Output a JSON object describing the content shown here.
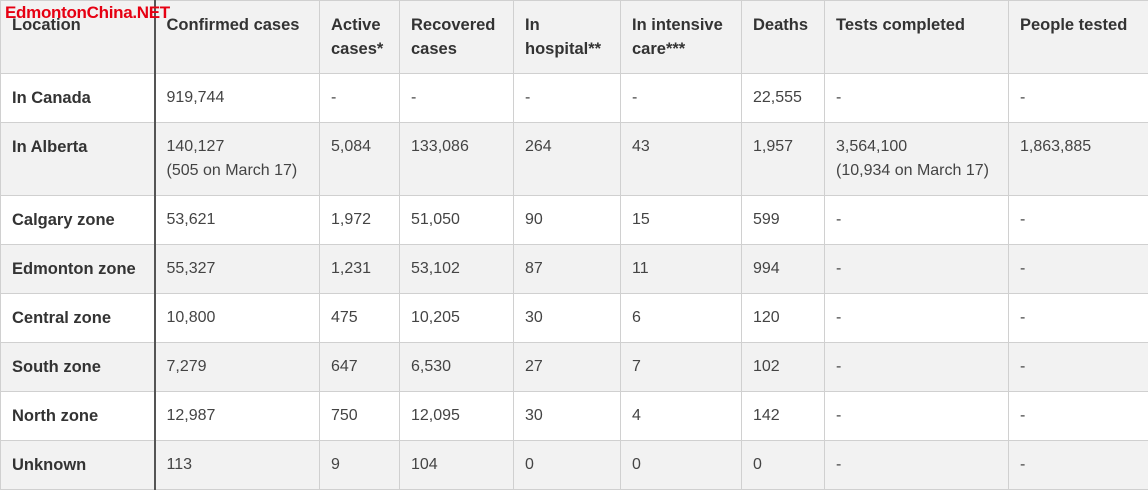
{
  "watermark": "EdmontonChina.NET",
  "headers": {
    "location": "Location",
    "confirmed": "Confirmed cases",
    "active": "Active cases*",
    "recovered": "Recovered cases",
    "hospital": "In hospital**",
    "icu": "In intensive care***",
    "deaths": "Deaths",
    "tests": "Tests completed",
    "tested": "People tested"
  },
  "rows": [
    {
      "location": "In Canada",
      "confirmed": "919,744",
      "confirmed_note": "",
      "active": "-",
      "recovered": "-",
      "hospital": "-",
      "icu": "-",
      "deaths": "22,555",
      "tests": "-",
      "tests_note": "",
      "tested": "-"
    },
    {
      "location": "In Alberta",
      "confirmed": "140,127",
      "confirmed_note": "(505 on March 17)",
      "active": "5,084",
      "recovered": "133,086",
      "hospital": "264",
      "icu": "43",
      "deaths": "1,957",
      "tests": "3,564,100",
      "tests_note": "(10,934 on March 17)",
      "tested": "1,863,885"
    },
    {
      "location": "Calgary zone",
      "confirmed": "53,621",
      "confirmed_note": "",
      "active": "1,972",
      "recovered": "51,050",
      "hospital": "90",
      "icu": "15",
      "deaths": "599",
      "tests": "-",
      "tests_note": "",
      "tested": "-"
    },
    {
      "location": "Edmonton zone",
      "confirmed": "55,327",
      "confirmed_note": "",
      "active": "1,231",
      "recovered": "53,102",
      "hospital": "87",
      "icu": "11",
      "deaths": "994",
      "tests": "-",
      "tests_note": "",
      "tested": "-"
    },
    {
      "location": "Central zone",
      "confirmed": "10,800",
      "confirmed_note": "",
      "active": "475",
      "recovered": "10,205",
      "hospital": "30",
      "icu": "6",
      "deaths": "120",
      "tests": "-",
      "tests_note": "",
      "tested": "-"
    },
    {
      "location": "South zone",
      "confirmed": "7,279",
      "confirmed_note": "",
      "active": "647",
      "recovered": "6,530",
      "hospital": "27",
      "icu": "7",
      "deaths": "102",
      "tests": "-",
      "tests_note": "",
      "tested": "-"
    },
    {
      "location": "North zone",
      "confirmed": "12,987",
      "confirmed_note": "",
      "active": "750",
      "recovered": "12,095",
      "hospital": "30",
      "icu": "4",
      "deaths": "142",
      "tests": "-",
      "tests_note": "",
      "tested": "-"
    },
    {
      "location": "Unknown",
      "confirmed": "113",
      "confirmed_note": "",
      "active": "9",
      "recovered": "104",
      "hospital": "0",
      "icu": "0",
      "deaths": "0",
      "tests": "-",
      "tests_note": "",
      "tested": "-"
    }
  ]
}
